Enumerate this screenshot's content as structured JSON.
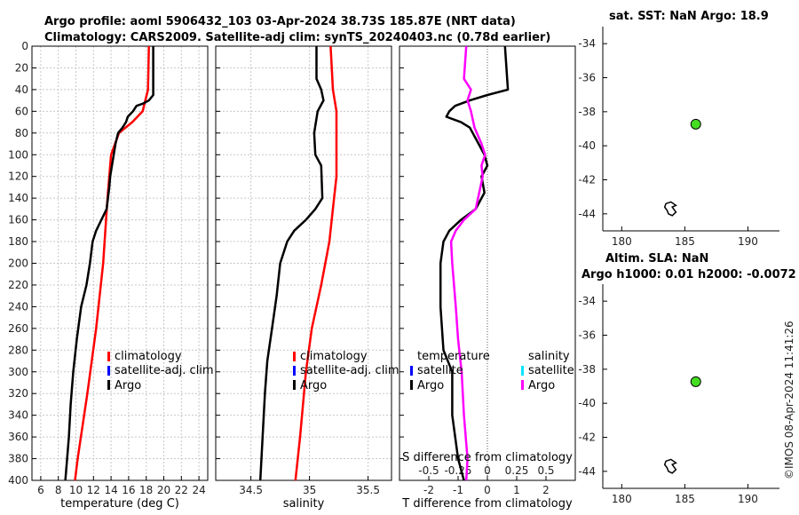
{
  "header": {
    "title_line1": "Argo profile: aoml 5906432_103 03-Apr-2024 38.73S 185.87E (NRT data)",
    "title_line2": "Climatology: CARS2009. Satellite-adj clim: synTS_20240403.nc (0.78d earlier)",
    "sst_title": "sat. SST: NaN Argo: 18.9",
    "sla_title_line1": "Altim. SLA: NaN",
    "sla_title_line2": "Argo h1000: 0.01 h2000: -0.0072",
    "watermark": "©IMOS 08-Apr-2024 11:41:26"
  },
  "colors": {
    "argo": "#000000",
    "climatology": "#ff0000",
    "satellite": "#0000ff",
    "sal_satellite": "#00e5ff",
    "sal_diff": "#ff00ff",
    "float_marker": "#44dd22"
  },
  "chart_data": [
    {
      "type": "line",
      "id": "temperature",
      "xlabel": "temperature (deg C)",
      "ylabel": "",
      "xlim": [
        5,
        25
      ],
      "ylim": [
        400,
        0
      ],
      "xticks": [
        6,
        8,
        10,
        12,
        14,
        16,
        18,
        20,
        22,
        24
      ],
      "yticks": [
        0,
        20,
        40,
        60,
        80,
        100,
        120,
        140,
        160,
        180,
        200,
        220,
        240,
        260,
        280,
        300,
        320,
        340,
        360,
        380,
        400
      ],
      "grid": true,
      "legend": [
        "climatology",
        "satellite-adj. clim",
        "Argo"
      ],
      "legend_position": "lower-right",
      "series": [
        {
          "name": "climatology",
          "color": "red",
          "points": [
            [
              18.3,
              0
            ],
            [
              18.2,
              40
            ],
            [
              17.6,
              60
            ],
            [
              16.4,
              70
            ],
            [
              14.9,
              80
            ],
            [
              14.0,
              100
            ],
            [
              13.6,
              140
            ],
            [
              13.1,
              200
            ],
            [
              12.3,
              260
            ],
            [
              11.3,
              320
            ],
            [
              10.2,
              380
            ],
            [
              9.9,
              400
            ]
          ]
        },
        {
          "name": "Argo",
          "color": "black",
          "points": [
            [
              18.8,
              0
            ],
            [
              18.8,
              45
            ],
            [
              18.3,
              50
            ],
            [
              17.6,
              53
            ],
            [
              16.9,
              55
            ],
            [
              16.5,
              60
            ],
            [
              15.9,
              65
            ],
            [
              15.7,
              70
            ],
            [
              15.3,
              75
            ],
            [
              14.8,
              80
            ],
            [
              14.5,
              90
            ],
            [
              14.3,
              100
            ],
            [
              13.9,
              120
            ],
            [
              13.8,
              130
            ],
            [
              13.5,
              150
            ],
            [
              12.9,
              160
            ],
            [
              12.3,
              170
            ],
            [
              11.9,
              180
            ],
            [
              11.6,
              200
            ],
            [
              11.2,
              220
            ],
            [
              10.6,
              240
            ],
            [
              10.1,
              270
            ],
            [
              9.7,
              300
            ],
            [
              9.4,
              330
            ],
            [
              9.2,
              360
            ],
            [
              8.9,
              390
            ],
            [
              8.8,
              400
            ]
          ]
        }
      ]
    },
    {
      "type": "line",
      "id": "salinity",
      "xlabel": "salinity",
      "xlim": [
        34.2,
        35.7
      ],
      "ylim": [
        400,
        0
      ],
      "xticks": [
        34.5,
        35,
        35.5
      ],
      "grid": true,
      "legend": [
        "climatology",
        "satellite-adj. clim",
        "Argo"
      ],
      "legend_position": "lower-right",
      "series": [
        {
          "name": "climatology",
          "color": "red",
          "points": [
            [
              35.18,
              0
            ],
            [
              35.2,
              40
            ],
            [
              35.23,
              60
            ],
            [
              35.23,
              120
            ],
            [
              35.21,
              140
            ],
            [
              35.17,
              180
            ],
            [
              35.1,
              220
            ],
            [
              35.02,
              260
            ],
            [
              34.97,
              300
            ],
            [
              34.92,
              360
            ],
            [
              34.88,
              400
            ]
          ]
        },
        {
          "name": "Argo",
          "color": "black",
          "points": [
            [
              35.06,
              0
            ],
            [
              35.06,
              30
            ],
            [
              35.1,
              40
            ],
            [
              35.12,
              50
            ],
            [
              35.07,
              60
            ],
            [
              35.04,
              80
            ],
            [
              35.05,
              100
            ],
            [
              35.1,
              110
            ],
            [
              35.11,
              140
            ],
            [
              35.05,
              150
            ],
            [
              34.97,
              160
            ],
            [
              34.87,
              170
            ],
            [
              34.81,
              180
            ],
            [
              34.75,
              200
            ],
            [
              34.72,
              230
            ],
            [
              34.68,
              260
            ],
            [
              34.64,
              290
            ],
            [
              34.62,
              320
            ],
            [
              34.6,
              360
            ],
            [
              34.58,
              400
            ]
          ]
        }
      ]
    },
    {
      "type": "line",
      "id": "difference",
      "xlabel": "T difference from climatology",
      "top_xlabel": "S difference from climatology",
      "xlim": [
        -3,
        3
      ],
      "ylim": [
        400,
        0
      ],
      "xticks": [
        -2,
        -1,
        0,
        1,
        2
      ],
      "top_xticks": [
        -0.5,
        -0.25,
        0,
        0.25,
        0.5
      ],
      "legend_temperature_heading": "temperature",
      "legend_salinity_heading": "salinity",
      "legend_temperature": [
        "satellite",
        "Argo"
      ],
      "legend_salinity": [
        "satellite",
        "Argo"
      ],
      "legend_position": "lower",
      "series": [
        {
          "name": "T Argo",
          "color": "black",
          "points": [
            [
              0.6,
              0
            ],
            [
              0.7,
              40
            ],
            [
              0,
              45
            ],
            [
              -0.6,
              50
            ],
            [
              -1.1,
              55
            ],
            [
              -1.3,
              60
            ],
            [
              -1.4,
              65
            ],
            [
              -0.9,
              70
            ],
            [
              -0.6,
              75
            ],
            [
              -0.3,
              90
            ],
            [
              -0.1,
              100
            ],
            [
              0.0,
              110
            ],
            [
              -0.2,
              120
            ],
            [
              -0.1,
              135
            ],
            [
              -0.4,
              150
            ],
            [
              -0.9,
              160
            ],
            [
              -1.3,
              170
            ],
            [
              -1.5,
              180
            ],
            [
              -1.6,
              200
            ],
            [
              -1.6,
              240
            ],
            [
              -1.5,
              280
            ],
            [
              -1.2,
              300
            ],
            [
              -1.2,
              340
            ],
            [
              -1.1,
              360
            ],
            [
              -1.0,
              380
            ],
            [
              -0.8,
              400
            ]
          ]
        },
        {
          "name": "S Argo",
          "color": "magenta",
          "points": [
            [
              -0.18,
              0
            ],
            [
              -0.2,
              30
            ],
            [
              -0.14,
              40
            ],
            [
              -0.17,
              50
            ],
            [
              -0.14,
              60
            ],
            [
              -0.11,
              75
            ],
            [
              -0.05,
              90
            ],
            [
              -0.02,
              100
            ],
            [
              -0.05,
              110
            ],
            [
              -0.04,
              120
            ],
            [
              -0.07,
              135
            ],
            [
              -0.1,
              150
            ],
            [
              -0.2,
              160
            ],
            [
              -0.27,
              170
            ],
            [
              -0.31,
              180
            ],
            [
              -0.3,
              200
            ],
            [
              -0.27,
              240
            ],
            [
              -0.25,
              270
            ],
            [
              -0.22,
              300
            ],
            [
              -0.2,
              340
            ],
            [
              -0.17,
              380
            ],
            [
              -0.18,
              400
            ]
          ]
        }
      ]
    },
    {
      "type": "scatter",
      "id": "sst_map",
      "title": "sat. SST: NaN Argo: 18.9",
      "xlim": [
        178.5,
        192.5
      ],
      "ylim": [
        -45,
        -33
      ],
      "xticks": [
        180,
        185,
        190
      ],
      "yticks": [
        -34,
        -36,
        -38,
        -40,
        -42,
        -44
      ],
      "points": [
        [
          185.87,
          -38.73
        ]
      ]
    },
    {
      "type": "scatter",
      "id": "sla_map",
      "title": "Altim. SLA: NaN",
      "xlim": [
        178.5,
        192.5
      ],
      "ylim": [
        -45,
        -33
      ],
      "xticks": [
        180,
        185,
        190
      ],
      "yticks": [
        -34,
        -36,
        -38,
        -40,
        -42,
        -44
      ],
      "points": [
        [
          185.87,
          -38.73
        ]
      ]
    }
  ]
}
